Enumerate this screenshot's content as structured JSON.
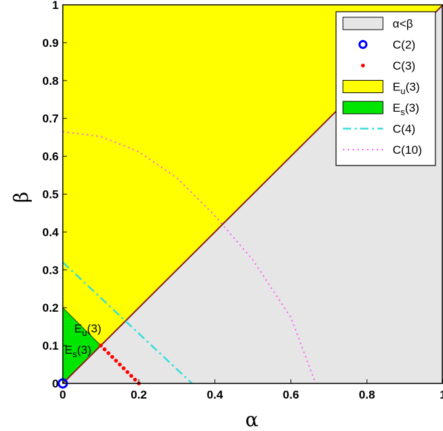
{
  "chart_data": {
    "type": "area",
    "xlabel": "α",
    "ylabel": "β",
    "xlim": [
      0,
      1
    ],
    "ylim": [
      0,
      1
    ],
    "xticks": [
      "0",
      "0.2",
      "0.4",
      "0.6",
      "0.8",
      "1"
    ],
    "yticks": [
      "0",
      "0.1",
      "0.2",
      "0.3",
      "0.4",
      "0.5",
      "0.6",
      "0.7",
      "0.8",
      "0.9",
      "1"
    ],
    "grid": false,
    "legend_position": "top-right",
    "colors": {
      "region_alpha_lt_beta": "#e6e6e6",
      "E_u": "#ffff00",
      "E_s": "#00e600",
      "C2": "#0000ff",
      "C3": "#ff0000",
      "C4": "#33dddd",
      "C10": "#ff55ff"
    },
    "regions": [
      {
        "name": "α<β",
        "polygon": [
          [
            0,
            0
          ],
          [
            1,
            1
          ],
          [
            1,
            0
          ]
        ]
      },
      {
        "name": "E_u(3)",
        "polygon": [
          [
            0,
            0.2
          ],
          [
            0,
            1
          ],
          [
            1,
            1
          ],
          [
            0.1,
            0.1
          ]
        ]
      },
      {
        "name": "E_s(3)",
        "polygon": [
          [
            0,
            0
          ],
          [
            0,
            0.2
          ],
          [
            0.1,
            0.1
          ]
        ]
      }
    ],
    "series": [
      {
        "name": "C(2)",
        "style": "circle-marker",
        "points": [
          [
            0,
            0
          ]
        ]
      },
      {
        "name": "C(3)",
        "style": "dots",
        "points": [
          [
            0.1,
            0.1
          ],
          [
            0.11,
            0.09
          ],
          [
            0.12,
            0.08
          ],
          [
            0.13,
            0.07
          ],
          [
            0.14,
            0.06
          ],
          [
            0.15,
            0.05
          ],
          [
            0.16,
            0.04
          ],
          [
            0.17,
            0.03
          ],
          [
            0.18,
            0.02
          ],
          [
            0.19,
            0.01
          ],
          [
            0.2,
            0
          ]
        ]
      },
      {
        "name": "C(4)",
        "style": "dash-dot",
        "points": [
          [
            0,
            0.32
          ],
          [
            0.34,
            0
          ]
        ]
      },
      {
        "name": "C(10)",
        "style": "dotted",
        "points": [
          [
            0,
            0.665
          ],
          [
            0.1,
            0.652
          ],
          [
            0.2,
            0.612
          ],
          [
            0.3,
            0.543
          ],
          [
            0.4,
            0.443
          ],
          [
            0.5,
            0.326
          ],
          [
            0.6,
            0.174
          ],
          [
            0.665,
            0
          ]
        ]
      }
    ],
    "legend": [
      {
        "label": "α<β",
        "kind": "patch",
        "color": "#e6e6e6"
      },
      {
        "label": "C(2)",
        "kind": "circle",
        "color": "#0000ff"
      },
      {
        "label": "C(3)",
        "kind": "dot",
        "color": "#ff0000"
      },
      {
        "label": "E",
        "sub": "u",
        "suffix": "(3)",
        "kind": "patch",
        "color": "#ffff00"
      },
      {
        "label": "E",
        "sub": "s",
        "suffix": "(3)",
        "kind": "patch",
        "color": "#00e600"
      },
      {
        "label": "C(4)",
        "kind": "dashdot",
        "color": "#33dddd"
      },
      {
        "label": "C(10)",
        "kind": "dotted",
        "color": "#ff55ff"
      }
    ],
    "annotations": [
      {
        "label": "E",
        "sub": "u",
        "suffix": "(3)",
        "at": [
          0.03,
          0.135
        ]
      },
      {
        "label": "E",
        "sub": "s",
        "suffix": "(3)",
        "at": [
          0.005,
          0.078
        ]
      }
    ]
  }
}
